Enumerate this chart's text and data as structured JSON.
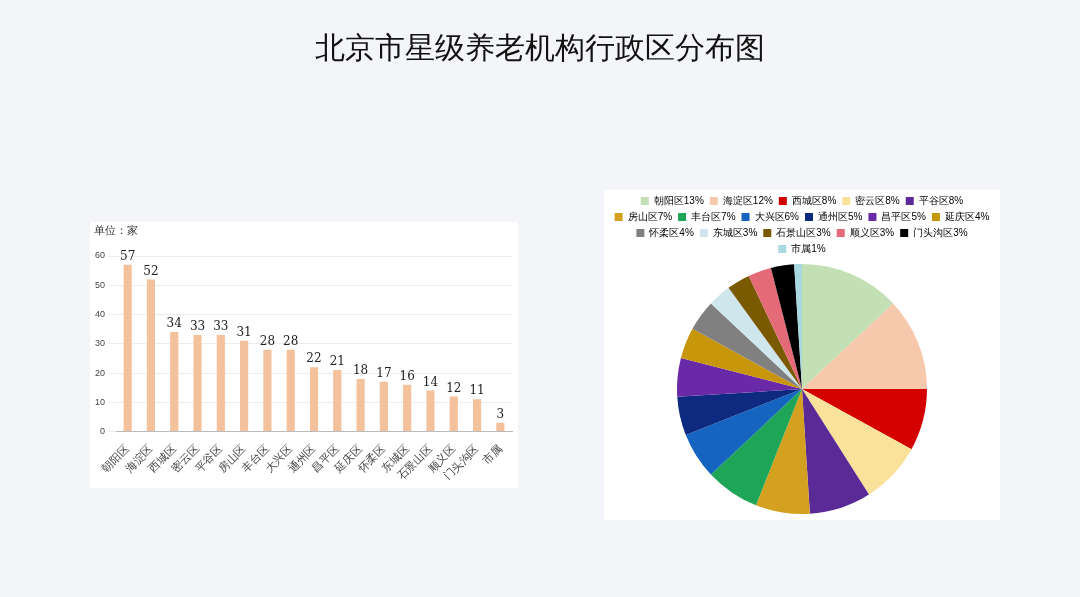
{
  "chart_data": [
    {
      "type": "bar",
      "title": "北京市星级养老机构行政区分布图",
      "ylabel": "单位：家",
      "categories": [
        "朝阳区",
        "海淀区",
        "西城区",
        "密云区",
        "平谷区",
        "房山区",
        "丰台区",
        "大兴区",
        "通州区",
        "昌平区",
        "延庆区",
        "怀柔区",
        "东城区",
        "石景山区",
        "顺义区",
        "门头沟区",
        "市属"
      ],
      "values": [
        57,
        52,
        34,
        33,
        33,
        31,
        28,
        28,
        22,
        21,
        18,
        17,
        16,
        14,
        12,
        11,
        3
      ],
      "color": "#f3c19c",
      "ylim": [
        0,
        60
      ],
      "yticks": [
        0,
        10,
        20,
        30,
        40,
        50,
        60
      ],
      "grid": "y",
      "data_labels": true
    },
    {
      "type": "pie",
      "categories": [
        "朝阳区",
        "海淀区",
        "西城区",
        "密云区",
        "平谷区",
        "房山区",
        "丰台区",
        "大兴区",
        "通州区",
        "昌平区",
        "延庆区",
        "怀柔区",
        "东城区",
        "石景山区",
        "顺义区",
        "门头沟区",
        "市属"
      ],
      "values": [
        13,
        12,
        8,
        8,
        8,
        7,
        7,
        6,
        5,
        5,
        4,
        4,
        3,
        3,
        3,
        3,
        1
      ],
      "value_labels": [
        "13%",
        "12%",
        "8%",
        "8%",
        "8%",
        "7%",
        "7%",
        "6%",
        "5%",
        "5%",
        "4%",
        "4%",
        "3%",
        "3%",
        "3%",
        "3%",
        "1%"
      ],
      "colors": [
        "#c2e0b4",
        "#f6c9ad",
        "#d40000",
        "#fbe29a",
        "#5a2a96",
        "#d4a020",
        "#1fa557",
        "#1565c0",
        "#0d2a80",
        "#6a2aa8",
        "#c8960a",
        "#808080",
        "#cfe6ec",
        "#7a5a00",
        "#e46a78",
        "#000000",
        "#a8d8e0"
      ],
      "legend": "top"
    }
  ]
}
